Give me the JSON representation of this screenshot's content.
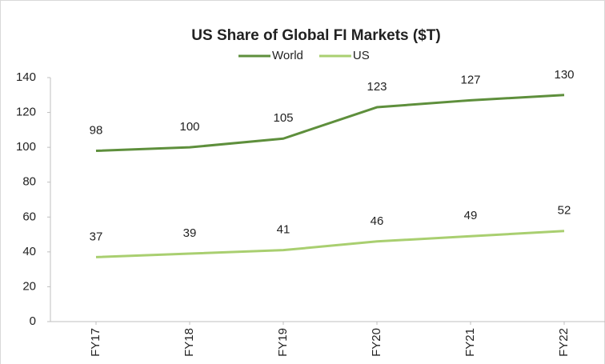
{
  "chart_data": {
    "type": "line",
    "title": "US Share of Global FI Markets ($T)",
    "categories": [
      "FY17",
      "FY18",
      "FY19",
      "FY20",
      "FY21",
      "FY22"
    ],
    "series": [
      {
        "name": "World",
        "color": "#5e8f3c",
        "values": [
          98,
          100,
          105,
          123,
          127,
          130
        ]
      },
      {
        "name": "US",
        "color": "#a9cf70",
        "values": [
          37,
          39,
          41,
          46,
          49,
          52
        ]
      }
    ],
    "ylim": [
      0,
      140
    ],
    "yticks": [
      0,
      20,
      40,
      60,
      80,
      100,
      120,
      140
    ],
    "grid": false,
    "legend": "top"
  }
}
